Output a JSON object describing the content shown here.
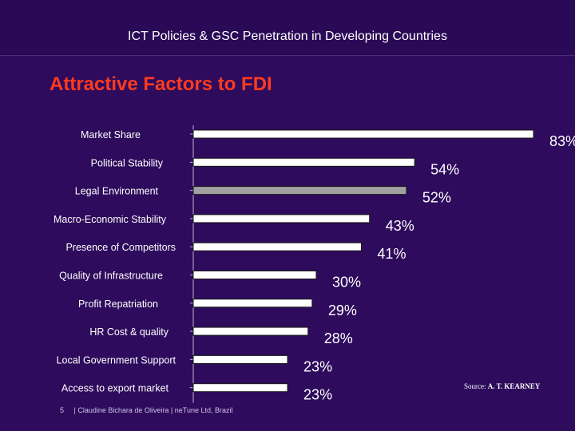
{
  "header": {
    "title": "ICT Policies & GSC Penetration in Developing Countries"
  },
  "slide": {
    "title": "Attractive Factors to FDI"
  },
  "chart_data": {
    "type": "bar",
    "orientation": "horizontal",
    "categories": [
      "Market Share",
      "Political Stability",
      "Legal Environment",
      "Macro-Economic Stability",
      "Presence of Competitors",
      "Quality of Infrastructure",
      "Profit Repatriation",
      "HR Cost & quality",
      "Local Government Support",
      "Access to export market"
    ],
    "values": [
      83,
      54,
      52,
      43,
      41,
      30,
      29,
      28,
      23,
      23
    ],
    "value_labels": [
      "83%",
      "54%",
      "52%",
      "43%",
      "41%",
      "30%",
      "29%",
      "28%",
      "23%",
      "23%"
    ],
    "highlight_index": 2,
    "colors": {
      "bar": "#ffffff",
      "highlight": "#a0a0a0",
      "label": "#ffffff",
      "axis": "#bdb6cc"
    },
    "title": "",
    "xlabel": "",
    "ylabel": "",
    "xlim": [
      0,
      83
    ]
  },
  "footer": {
    "page": "5",
    "credit": "| Claudine Bichara de Oliveira | neTune Ltd, Brazil",
    "source_label": "Source:",
    "source_name": "A. T. KEARNEY"
  }
}
